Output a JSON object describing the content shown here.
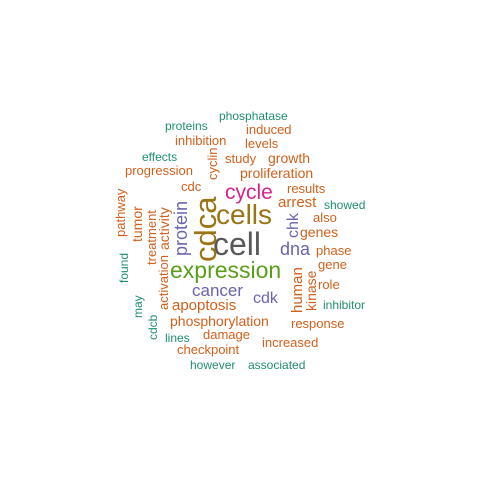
{
  "words": {
    "cell": "cell",
    "cdca": "cdca",
    "cells": "cells",
    "expression": "expression",
    "cycle": "cycle",
    "protein": "protein",
    "dna": "dna",
    "cancer": "cancer",
    "cdk": "cdk",
    "apoptosis": "apoptosis",
    "phosphorylation": "phosphorylation",
    "arrest": "arrest",
    "chk": "chk",
    "human": "human",
    "kinase": "kinase",
    "proliferation": "proliferation",
    "growth": "growth",
    "genes": "genes",
    "also": "also",
    "phase": "phase",
    "gene": "gene",
    "role": "role",
    "results": "results",
    "study": "study",
    "levels": "levels",
    "induced": "induced",
    "inhibition": "inhibition",
    "progression": "progression",
    "cdc": "cdc",
    "cyclin": "cyclin",
    "activity": "activity",
    "activation": "activation",
    "treatment": "treatment",
    "tumor": "tumor",
    "pathway": "pathway",
    "found": "found",
    "may": "may",
    "cdcb": "cdcb",
    "damage": "damage",
    "checkpoint": "checkpoint",
    "lines": "lines",
    "increased": "increased",
    "response": "response",
    "however": "however",
    "associated": "associated",
    "inhibitor": "inhibitor",
    "showed": "showed",
    "phosphatase": "phosphatase",
    "proteins": "proteins",
    "effects": "effects"
  },
  "colors": {
    "grey": "#595959",
    "olive": "#9a7416",
    "green": "#5a9e1b",
    "magenta": "#d9238a",
    "purple": "#6a63b0",
    "orange": "#d2601c",
    "teal": "#1f8f6e"
  }
}
